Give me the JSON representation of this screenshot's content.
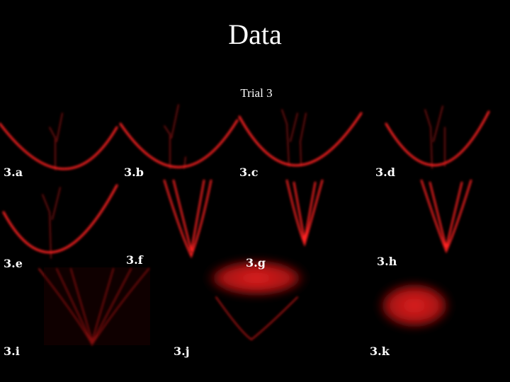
{
  "title": "Data",
  "subtitle": "Trial 3",
  "panels": [
    {
      "label": "3.a"
    },
    {
      "label": "3.b"
    },
    {
      "label": "3.c"
    },
    {
      "label": "3.d"
    },
    {
      "label": "3.e"
    },
    {
      "label": "3.f"
    },
    {
      "label": "3.g"
    },
    {
      "label": "3.h"
    },
    {
      "label": "3.i"
    },
    {
      "label": "3.j"
    },
    {
      "label": "3.k"
    }
  ]
}
